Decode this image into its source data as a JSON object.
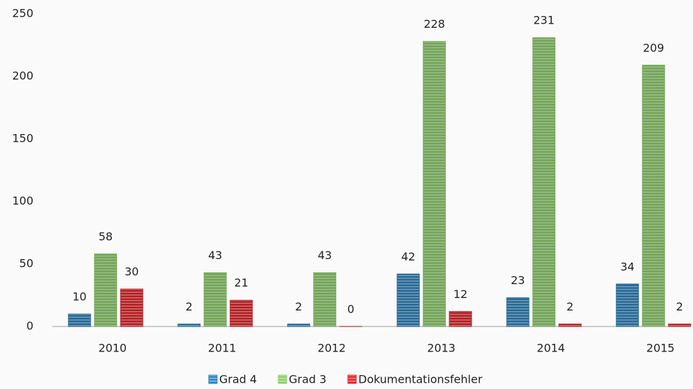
{
  "chart_data": {
    "type": "bar",
    "categories": [
      "2010",
      "2011",
      "2012",
      "2013",
      "2014",
      "2015"
    ],
    "series": [
      {
        "name": "Grad 4",
        "color": "#2e86c1",
        "values": [
          10,
          2,
          2,
          42,
          23,
          34
        ]
      },
      {
        "name": "Grad 3",
        "color": "#8fd16a",
        "values": [
          58,
          43,
          43,
          228,
          231,
          209
        ]
      },
      {
        "name": "Dokumentationsfehler",
        "color": "#e8262b",
        "values": [
          30,
          21,
          0,
          12,
          2,
          2
        ]
      }
    ],
    "ylim": [
      0,
      250
    ],
    "yticks": [
      0,
      50,
      100,
      150,
      200,
      250
    ],
    "grid": false,
    "legend": "bottom"
  }
}
